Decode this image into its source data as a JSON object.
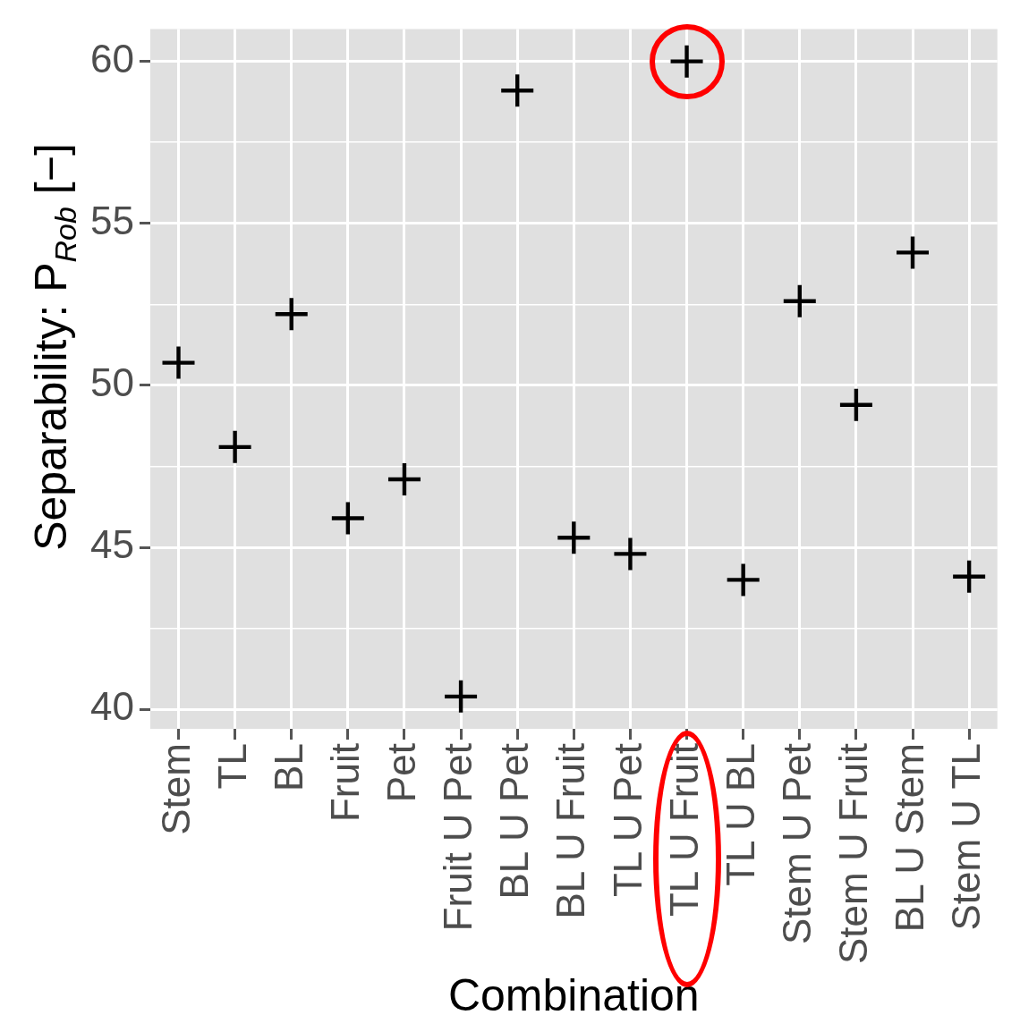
{
  "chart_data": {
    "type": "scatter",
    "xlabel": "Combination",
    "ylabel": "Separability:  P$_{Rob}$  [−]",
    "categories": [
      "Stem",
      "TL",
      "BL",
      "Fruit",
      "Pet",
      "Fruit U Pet",
      "BL U Pet",
      "BL U Fruit",
      "TL U Pet",
      "TL U Fruit",
      "TL U BL",
      "Stem U Pet",
      "Stem U Fruit",
      "BL U Stem",
      "Stem U TL"
    ],
    "values": [
      50.7,
      48.1,
      52.2,
      45.9,
      47.1,
      40.4,
      59.1,
      45.3,
      44.8,
      60.0,
      44.0,
      52.6,
      49.4,
      54.1,
      44.1
    ],
    "color": "#000000",
    "marker": "cross",
    "ylim": [
      39.4,
      61.0
    ],
    "yticks": [
      40,
      {
        "value": 42.5,
        "label": null
      },
      45,
      {
        "value": 47.5,
        "label": null
      },
      50,
      {
        "value": 52.5,
        "label": null
      },
      55,
      {
        "value": 57.5,
        "label": null
      },
      60
    ],
    "grid": true,
    "legend": false
  }
}
